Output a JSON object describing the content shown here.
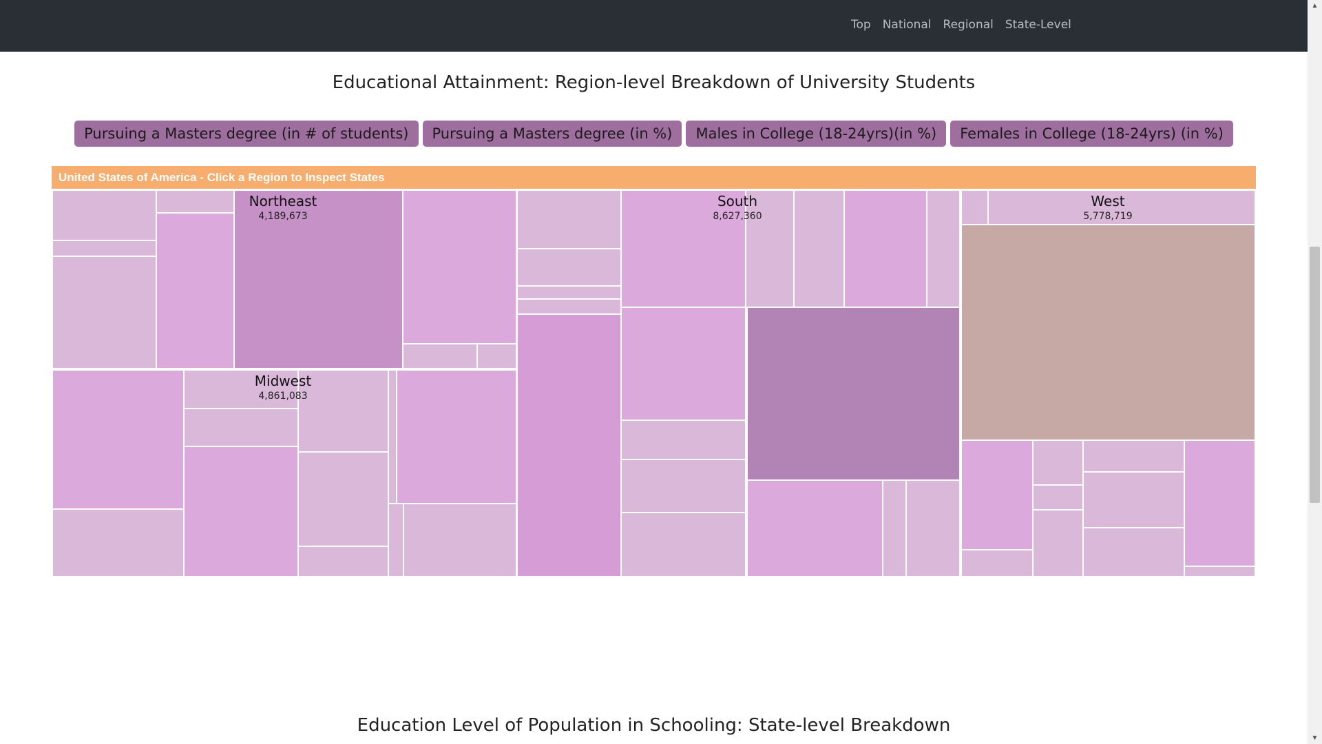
{
  "nav": {
    "items": [
      "Top",
      "National",
      "Regional",
      "State-Level"
    ]
  },
  "section1": {
    "title": "Educational Attainment: Region-level Breakdown of University Students"
  },
  "metric_buttons": [
    "Pursuing a Masters degree (in # of students)",
    "Pursuing a Masters degree (in %)",
    "Males in College (18-24yrs)(in %)",
    "Females in College (18-24yrs) (in %)"
  ],
  "treemap": {
    "header": "United States of America - Click a Region to Inspect States",
    "regions": [
      {
        "name": "Northeast",
        "value": "4,189,673"
      },
      {
        "name": "South",
        "value": "8,627,360"
      },
      {
        "name": "West",
        "value": "5,778,719"
      },
      {
        "name": "Midwest",
        "value": "4,861,083"
      }
    ],
    "colors": {
      "light": "#d9b8d9",
      "medium": "#dba9db",
      "pink": "#d69cd6",
      "strong": "#c591c7",
      "dark": "#b184b5",
      "tan": "#c6a8a4"
    }
  },
  "section2": {
    "title": "Education Level of Population in Schooling: State-level Breakdown"
  }
}
